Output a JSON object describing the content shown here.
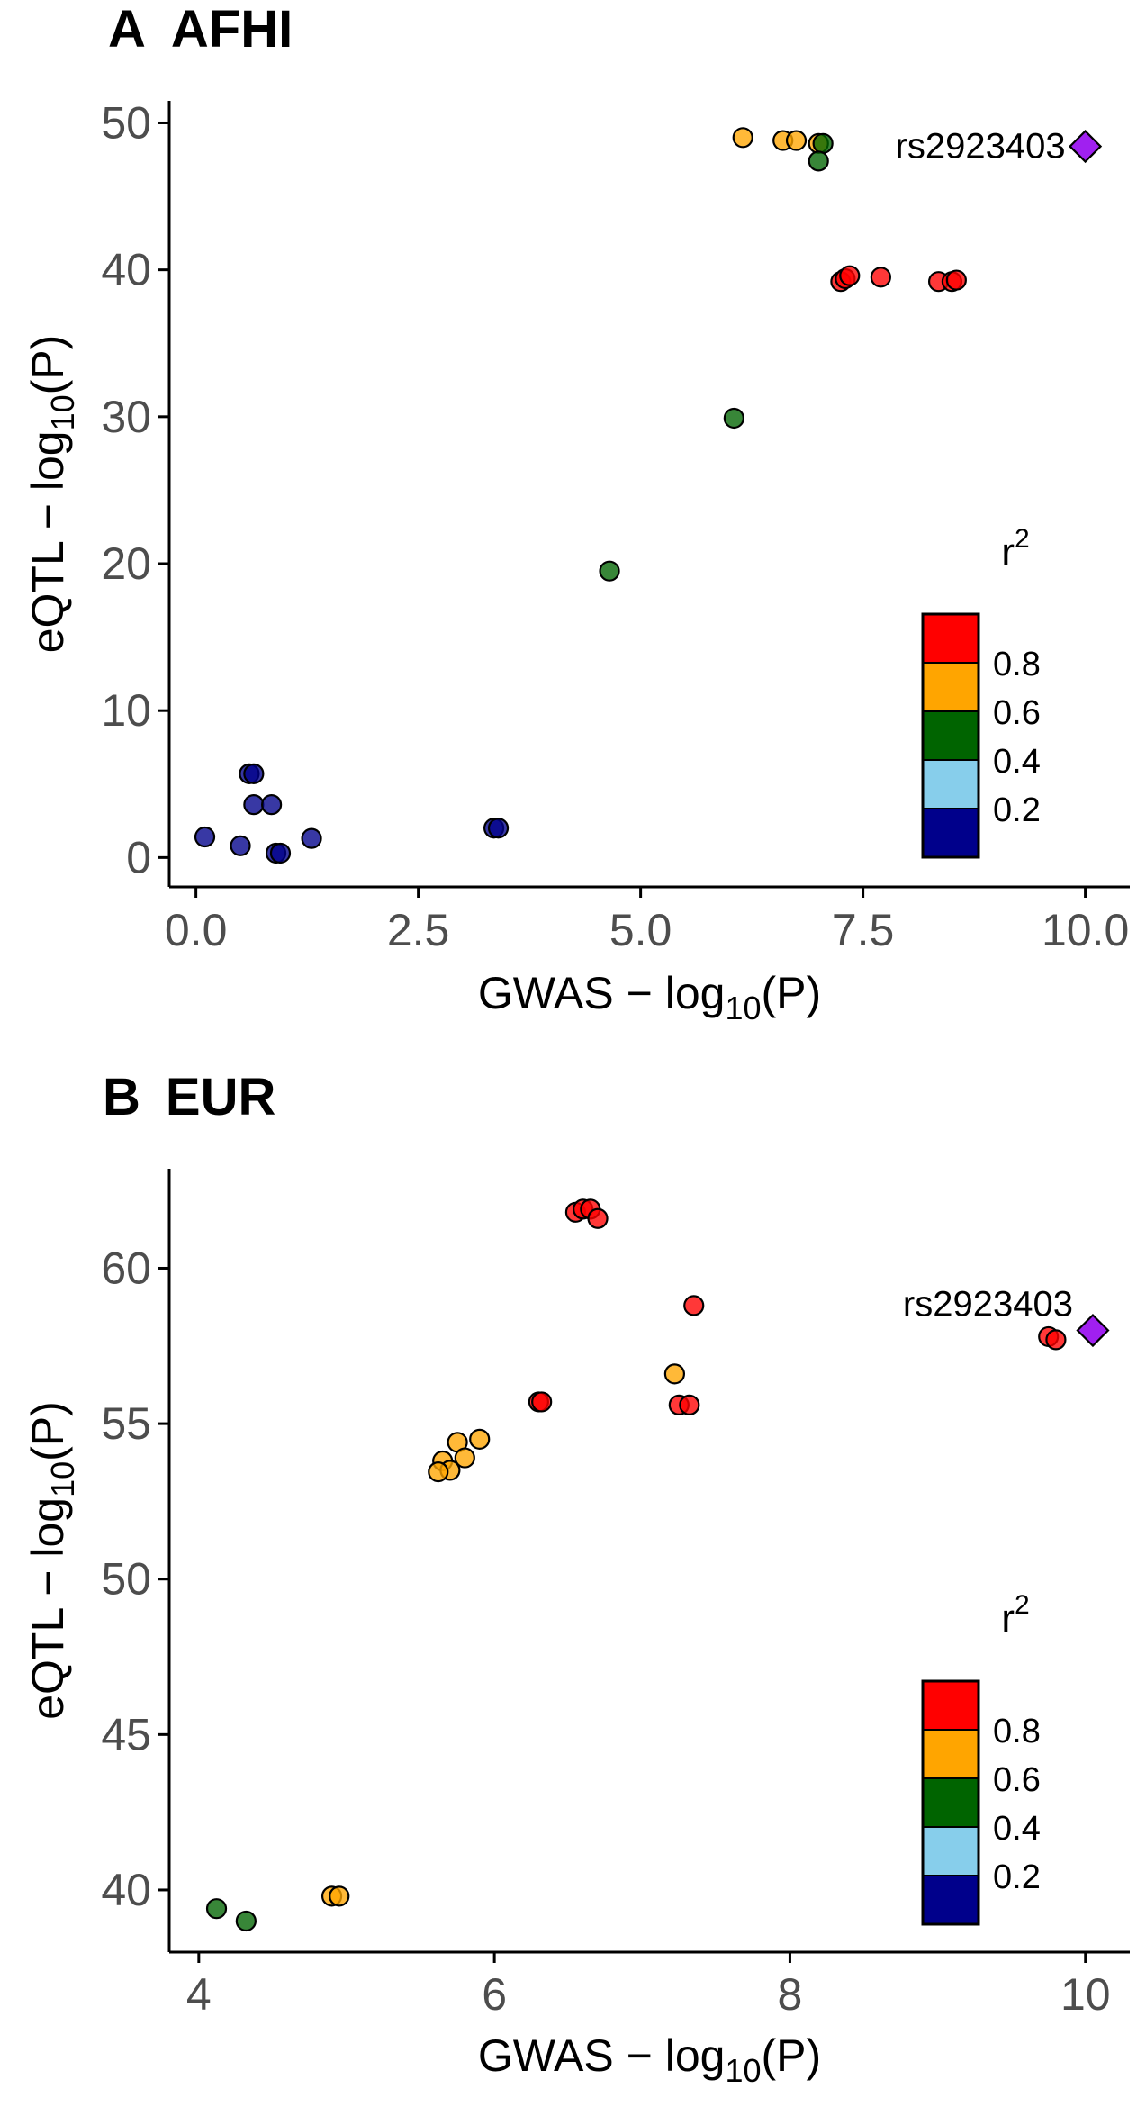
{
  "chart_data": [
    {
      "type": "scatter",
      "panel_letter": "A",
      "title": "AFHI",
      "xlabel": "GWAS −log10(P)",
      "ylabel": "eQTL −log10(P)",
      "xlabel_parts": {
        "pre": "GWAS − log",
        "sub": "10",
        "post": "(P)"
      },
      "ylabel_parts": {
        "pre": "eQTL − log",
        "sub": "10",
        "post": "(P)"
      },
      "xlim": [
        -0.3,
        10.5
      ],
      "ylim": [
        -2,
        51.5
      ],
      "xticks": [
        0,
        2.5,
        5,
        7.5,
        10
      ],
      "xtick_labels": [
        "0.0",
        "2.5",
        "5.0",
        "7.5",
        "10.0"
      ],
      "yticks": [
        0,
        10,
        20,
        30,
        40,
        50
      ],
      "ytick_labels": [
        "0",
        "10",
        "20",
        "30",
        "40",
        "50"
      ],
      "grid": false,
      "points": [
        {
          "x": 6.15,
          "y": 49.0,
          "bin": "0.6"
        },
        {
          "x": 6.6,
          "y": 48.8,
          "bin": "0.6"
        },
        {
          "x": 6.75,
          "y": 48.8,
          "bin": "0.6"
        },
        {
          "x": 7.0,
          "y": 48.6,
          "bin": "0.6"
        },
        {
          "x": 7.05,
          "y": 48.6,
          "bin": "0.4"
        },
        {
          "x": 7.0,
          "y": 47.4,
          "bin": "0.4"
        },
        {
          "x": 7.25,
          "y": 39.2,
          "bin": "0.8"
        },
        {
          "x": 7.3,
          "y": 39.4,
          "bin": "0.8"
        },
        {
          "x": 7.35,
          "y": 39.6,
          "bin": "0.8"
        },
        {
          "x": 7.7,
          "y": 39.5,
          "bin": "0.8"
        },
        {
          "x": 8.35,
          "y": 39.2,
          "bin": "0.8"
        },
        {
          "x": 8.5,
          "y": 39.2,
          "bin": "0.8"
        },
        {
          "x": 8.55,
          "y": 39.3,
          "bin": "0.8"
        },
        {
          "x": 6.05,
          "y": 29.9,
          "bin": "0.4"
        },
        {
          "x": 4.65,
          "y": 19.5,
          "bin": "0.4"
        },
        {
          "x": 0.6,
          "y": 5.7,
          "bin": "0.2"
        },
        {
          "x": 0.65,
          "y": 5.7,
          "bin": "0.2"
        },
        {
          "x": 0.65,
          "y": 3.6,
          "bin": "0.2"
        },
        {
          "x": 0.85,
          "y": 3.6,
          "bin": "0.2"
        },
        {
          "x": 0.1,
          "y": 1.4,
          "bin": "0.2"
        },
        {
          "x": 0.5,
          "y": 0.8,
          "bin": "0.2"
        },
        {
          "x": 0.9,
          "y": 0.3,
          "bin": "0.2"
        },
        {
          "x": 0.95,
          "y": 0.3,
          "bin": "0.2"
        },
        {
          "x": 1.3,
          "y": 1.3,
          "bin": "0.2"
        },
        {
          "x": 3.35,
          "y": 2.0,
          "bin": "0.2"
        },
        {
          "x": 3.4,
          "y": 2.0,
          "bin": "0.2"
        }
      ],
      "lead_snp": {
        "x": 10.0,
        "y": 48.4,
        "label": "rs2923403"
      },
      "legend": {
        "title": "r²",
        "title_base": "r",
        "title_sup": "2",
        "bins": [
          "0.8",
          "0.6",
          "0.4",
          "0.2"
        ],
        "labels": [
          "0.8",
          "0.6",
          "0.4",
          "0.2"
        ],
        "placement": "bottom-right"
      }
    },
    {
      "type": "scatter",
      "panel_letter": "B",
      "title": "EUR",
      "xlabel": "GWAS −log10(P)",
      "ylabel": "eQTL −log10(P)",
      "xlabel_parts": {
        "pre": "GWAS − log",
        "sub": "10",
        "post": "(P)"
      },
      "ylabel_parts": {
        "pre": "eQTL − log",
        "sub": "10",
        "post": "(P)"
      },
      "xlim": [
        3.8,
        10.3
      ],
      "ylim": [
        38,
        63.2
      ],
      "xticks": [
        4,
        6,
        8,
        10
      ],
      "xtick_labels": [
        "4",
        "6",
        "8",
        "10"
      ],
      "yticks": [
        40,
        45,
        50,
        55,
        60
      ],
      "ytick_labels": [
        "40",
        "45",
        "50",
        "55",
        "60"
      ],
      "grid": false,
      "points": [
        {
          "x": 6.55,
          "y": 61.8,
          "bin": "0.8"
        },
        {
          "x": 6.6,
          "y": 61.9,
          "bin": "0.8"
        },
        {
          "x": 6.65,
          "y": 61.9,
          "bin": "0.8"
        },
        {
          "x": 6.7,
          "y": 61.6,
          "bin": "0.8"
        },
        {
          "x": 7.35,
          "y": 58.8,
          "bin": "0.8"
        },
        {
          "x": 9.75,
          "y": 57.8,
          "bin": "0.8"
        },
        {
          "x": 9.8,
          "y": 57.7,
          "bin": "0.8"
        },
        {
          "x": 7.22,
          "y": 56.6,
          "bin": "0.6"
        },
        {
          "x": 6.3,
          "y": 55.7,
          "bin": "0.8"
        },
        {
          "x": 6.32,
          "y": 55.7,
          "bin": "0.8"
        },
        {
          "x": 7.25,
          "y": 55.6,
          "bin": "0.8"
        },
        {
          "x": 7.32,
          "y": 55.6,
          "bin": "0.8"
        },
        {
          "x": 5.9,
          "y": 54.5,
          "bin": "0.6"
        },
        {
          "x": 5.75,
          "y": 54.4,
          "bin": "0.6"
        },
        {
          "x": 5.8,
          "y": 53.9,
          "bin": "0.6"
        },
        {
          "x": 5.65,
          "y": 53.8,
          "bin": "0.6"
        },
        {
          "x": 5.7,
          "y": 53.5,
          "bin": "0.6"
        },
        {
          "x": 5.62,
          "y": 53.45,
          "bin": "0.6"
        },
        {
          "x": 4.9,
          "y": 39.8,
          "bin": "0.6"
        },
        {
          "x": 4.95,
          "y": 39.8,
          "bin": "0.6"
        },
        {
          "x": 4.12,
          "y": 39.4,
          "bin": "0.4"
        },
        {
          "x": 4.32,
          "y": 39.0,
          "bin": "0.4"
        }
      ],
      "lead_snp": {
        "x": 10.05,
        "y": 58.0,
        "label": "rs2923403"
      },
      "legend": {
        "title": "r²",
        "title_base": "r",
        "title_sup": "2",
        "bins": [
          "0.8",
          "0.6",
          "0.4",
          "0.2"
        ],
        "labels": [
          "0.8",
          "0.6",
          "0.4",
          "0.2"
        ],
        "placement": "bottom-right"
      }
    }
  ],
  "colors": {
    "0.8": "#FF0000",
    "0.6": "#FFA500",
    "0.4": "#006400",
    "0.2": "#00008B",
    "0.0": "#87CEEB",
    "lead": "#A020F0",
    "axis": "#000000",
    "tick_label": "#4D4D4D"
  }
}
